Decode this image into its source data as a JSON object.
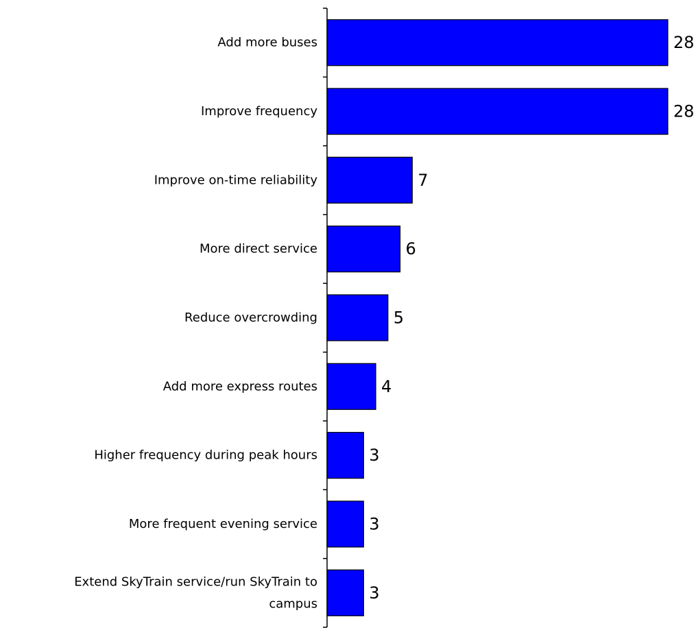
{
  "chart_data": {
    "type": "bar",
    "orientation": "horizontal",
    "categories": [
      "Add more buses",
      "Improve frequency",
      "Improve on-time reliability",
      "More direct service",
      "Reduce overcrowding",
      "Add more express routes",
      "Higher frequency during peak hours",
      "More frequent evening service",
      "Extend SkyTrain service/run SkyTrain to campus"
    ],
    "category_lines": [
      [
        "Add more buses"
      ],
      [
        "Improve frequency"
      ],
      [
        "Improve on-time reliability"
      ],
      [
        "More direct service"
      ],
      [
        "Reduce overcrowding"
      ],
      [
        "Add more express routes"
      ],
      [
        "Higher frequency during peak hours"
      ],
      [
        "More frequent evening service"
      ],
      [
        "Extend SkyTrain service/run SkyTrain to",
        "campus"
      ]
    ],
    "values": [
      28,
      28,
      7,
      6,
      5,
      4,
      3,
      3,
      3
    ],
    "title": "",
    "xlabel": "",
    "ylabel": "",
    "xlim": [
      0,
      28
    ],
    "grid": false,
    "legend": "none",
    "bar_color": "#0000FF",
    "bar_edge_color": "#000000"
  }
}
